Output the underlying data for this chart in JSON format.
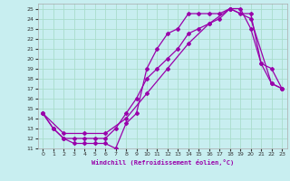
{
  "xlabel": "Windchill (Refroidissement éolien,°C)",
  "background_color": "#c8eef0",
  "grid_color": "#aaddcc",
  "line_color": "#9900aa",
  "xlim": [
    -0.5,
    23.5
  ],
  "ylim": [
    11,
    25.5
  ],
  "xticks": [
    0,
    1,
    2,
    3,
    4,
    5,
    6,
    7,
    8,
    9,
    10,
    11,
    12,
    13,
    14,
    15,
    16,
    17,
    18,
    19,
    20,
    21,
    22,
    23
  ],
  "yticks": [
    11,
    12,
    13,
    14,
    15,
    16,
    17,
    18,
    19,
    20,
    21,
    22,
    23,
    24,
    25
  ],
  "line1_x": [
    0,
    1,
    2,
    3,
    4,
    5,
    6,
    7,
    8,
    9,
    10,
    11,
    12,
    13,
    14,
    15,
    16,
    17,
    18,
    19,
    20,
    21,
    22,
    23
  ],
  "line1_y": [
    14.5,
    13.0,
    12.0,
    11.5,
    11.5,
    11.5,
    11.5,
    11.0,
    13.5,
    14.5,
    19.0,
    21.0,
    22.5,
    23.0,
    24.5,
    24.5,
    24.5,
    24.5,
    25.0,
    24.5,
    24.5,
    19.5,
    17.5,
    17.0
  ],
  "line2_x": [
    0,
    1,
    2,
    3,
    4,
    5,
    6,
    7,
    8,
    9,
    10,
    11,
    12,
    13,
    14,
    15,
    16,
    17,
    18,
    19,
    20,
    21,
    22,
    23
  ],
  "line2_y": [
    14.5,
    13.0,
    12.0,
    12.0,
    12.0,
    12.0,
    12.0,
    13.0,
    14.5,
    16.0,
    18.0,
    19.0,
    20.0,
    21.0,
    22.5,
    23.0,
    23.5,
    24.0,
    25.0,
    25.0,
    23.0,
    19.5,
    19.0,
    17.0
  ],
  "line3_x": [
    0,
    2,
    4,
    6,
    8,
    10,
    12,
    14,
    16,
    18,
    20,
    22,
    23
  ],
  "line3_y": [
    14.5,
    12.5,
    12.5,
    12.5,
    14.0,
    16.5,
    19.0,
    21.5,
    23.5,
    25.0,
    24.0,
    17.5,
    17.0
  ]
}
